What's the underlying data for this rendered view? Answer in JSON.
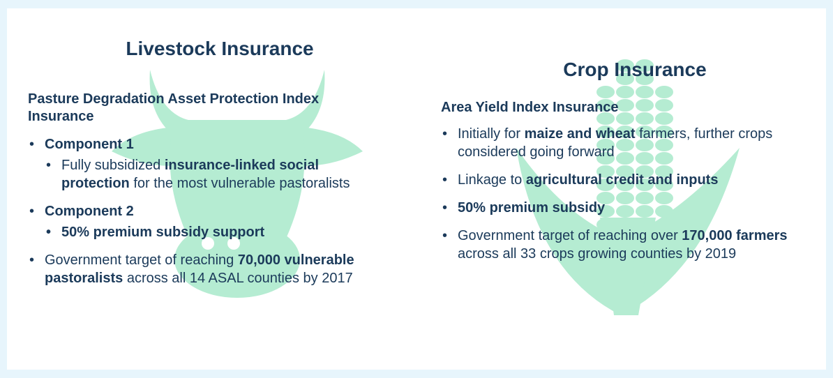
{
  "left": {
    "title": "Livestock Insurance",
    "subtitle": "Pasture Degradation Asset Protection Index Insurance",
    "items": [
      {
        "level": 1,
        "runs": [
          {
            "text": "Component 1",
            "bold": true
          }
        ]
      },
      {
        "level": 2,
        "runs": [
          {
            "text": "Fully subsidized ",
            "bold": false
          },
          {
            "text": "insurance-linked social protection",
            "bold": true
          },
          {
            "text": " for the most vulnerable pastoralists",
            "bold": false
          }
        ]
      },
      {
        "level": 1,
        "runs": [
          {
            "text": "Component 2",
            "bold": true
          }
        ]
      },
      {
        "level": 2,
        "runs": [
          {
            "text": "50% premium subsidy support",
            "bold": true
          }
        ]
      },
      {
        "level": 1,
        "runs": [
          {
            "text": "Government target of reaching ",
            "bold": false
          },
          {
            "text": "70,000 vulnerable pastoralists",
            "bold": true
          },
          {
            "text": " across all 14 ASAL counties by 2017",
            "bold": false
          }
        ]
      }
    ]
  },
  "right": {
    "title": "Crop Insurance",
    "subtitle": "Area Yield Index Insurance",
    "items": [
      {
        "level": 1,
        "runs": [
          {
            "text": "Initially for ",
            "bold": false
          },
          {
            "text": "maize and wheat",
            "bold": true
          },
          {
            "text": " farmers, further crops considered going forward",
            "bold": false
          }
        ]
      },
      {
        "level": 1,
        "runs": [
          {
            "text": "Linkage to ",
            "bold": false
          },
          {
            "text": "agricultural credit and inputs",
            "bold": true
          }
        ]
      },
      {
        "level": 1,
        "runs": [
          {
            "text": "50% premium subsidy",
            "bold": true
          }
        ]
      },
      {
        "level": 1,
        "runs": [
          {
            "text": "Government target of reaching over ",
            "bold": false
          },
          {
            "text": "170,000 farmers",
            "bold": true
          },
          {
            "text": " across all 33 crops growing counties by 2019",
            "bold": false
          }
        ]
      }
    ]
  }
}
